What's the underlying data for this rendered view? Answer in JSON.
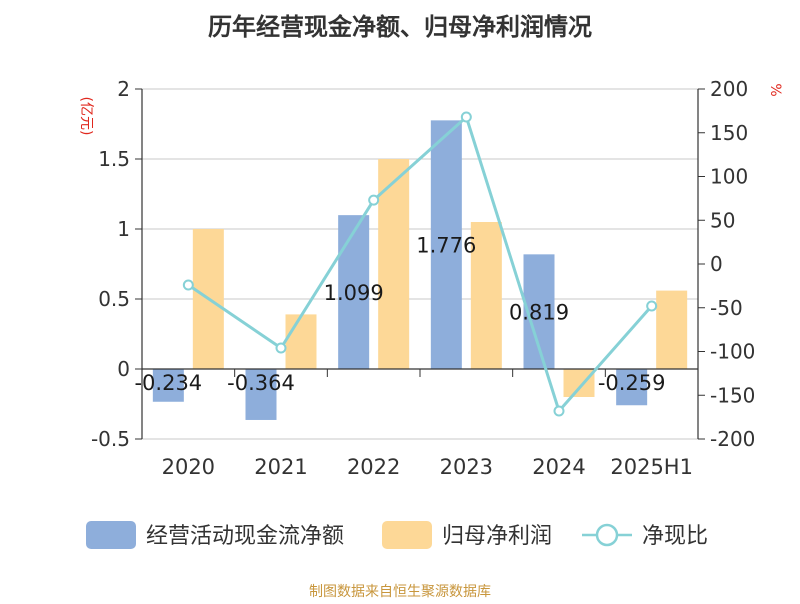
{
  "chart_data": {
    "type": "bar",
    "title": "历年经营现金净额、归母净利润情况",
    "categories": [
      "2020",
      "2021",
      "2022",
      "2023",
      "2024",
      "2025H1"
    ],
    "left_unit": "(亿元)",
    "right_unit": "%",
    "ylim_left": [
      -0.5,
      2
    ],
    "yticks_left": [
      "2",
      "1.5",
      "1",
      "0.5",
      "0",
      "-0.5"
    ],
    "ylim_right": [
      -200,
      200
    ],
    "yticks_right": [
      "200",
      "150",
      "100",
      "50",
      "0",
      "-50",
      "-100",
      "-150",
      "-200"
    ],
    "grid": true,
    "legend_position": "bottom",
    "series": [
      {
        "name": "经营活动现金流净额",
        "kind": "bar",
        "axis": "left",
        "color": "#8eaedb",
        "values": [
          -0.234,
          -0.364,
          1.099,
          1.776,
          0.819,
          -0.259
        ],
        "labels": [
          "-0.234",
          "-0.364",
          "1.099",
          "1.776",
          "0.819",
          "-0.259"
        ]
      },
      {
        "name": "归母净利润",
        "kind": "bar",
        "axis": "left",
        "color": "#fdd897",
        "values": [
          1.0,
          0.39,
          1.5,
          1.05,
          -0.2,
          0.56
        ]
      },
      {
        "name": "净现比",
        "kind": "line",
        "axis": "right",
        "color": "#86d1d6",
        "values": [
          -24,
          -96,
          73,
          168,
          -168,
          -48
        ]
      }
    ]
  },
  "footer": {
    "source": "制图数据来自恒生聚源数据库"
  }
}
